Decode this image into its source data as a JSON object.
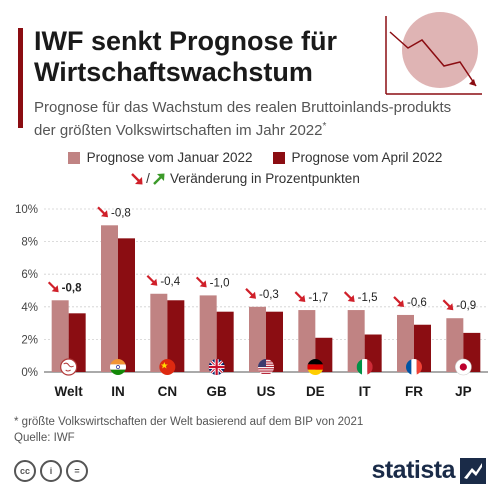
{
  "header": {
    "title": "IWF senkt Prognose für Wirtschaftswachstum",
    "subtitle": "Prognose für das Wachstum des realen Bruttoinlands-produkts der größten Volkswirtschaften im Jahr 2022",
    "subtitle_mark": "*"
  },
  "legend": {
    "january": "Prognose vom Januar 2022",
    "april": "Prognose vom April 2022",
    "change_sep": "/",
    "change": "Veränderung in Prozentpunkten"
  },
  "colors": {
    "january": "#c08383",
    "april": "#8b0d12",
    "down_arrow": "#d0202a",
    "up_arrow": "#3c9a2a"
  },
  "chart_data": {
    "type": "bar",
    "title": "",
    "xlabel": "",
    "ylabel": "",
    "ylim": [
      0,
      10
    ],
    "yticks": [
      "0%",
      "2%",
      "4%",
      "6%",
      "8%",
      "10%"
    ],
    "grid": true,
    "legend_position": "top",
    "categories": [
      "Welt",
      "IN",
      "CN",
      "GB",
      "US",
      "DE",
      "IT",
      "FR",
      "JP"
    ],
    "flags": [
      "world-flag-icon",
      "india-flag-icon",
      "china-flag-icon",
      "uk-flag-icon",
      "usa-flag-icon",
      "germany-flag-icon",
      "italy-flag-icon",
      "france-flag-icon",
      "japan-flag-icon"
    ],
    "series": [
      {
        "name": "Prognose vom Januar 2022",
        "values": [
          4.4,
          9.0,
          4.8,
          4.7,
          4.0,
          3.8,
          3.8,
          3.5,
          3.3
        ]
      },
      {
        "name": "Prognose vom April 2022",
        "values": [
          3.6,
          8.2,
          4.4,
          3.7,
          3.7,
          2.1,
          2.3,
          2.9,
          2.4
        ]
      }
    ],
    "change_labels": [
      "-0,8",
      "-0,8",
      "-0,4",
      "-1,0",
      "-0,3",
      "-1,7",
      "-1,5",
      "-0,6",
      "-0,9"
    ],
    "change_bold": [
      true,
      false,
      false,
      false,
      false,
      false,
      false,
      false,
      false
    ]
  },
  "footer": {
    "note": "* größte Volkswirtschaften der Welt basierend auf dem BIP von 2021",
    "source": "Quelle: IWF",
    "cc_labels": [
      "cc",
      "i",
      "="
    ],
    "logo": "statista"
  }
}
